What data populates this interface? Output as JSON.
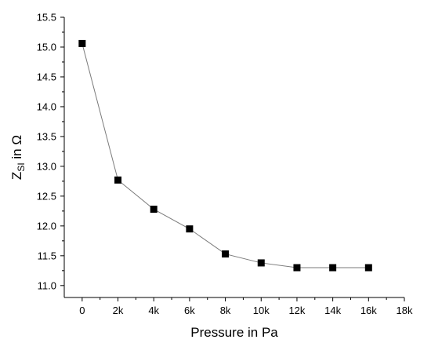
{
  "chart_data": {
    "type": "scatter",
    "xlabel": "Pressure in Pa",
    "ylabel_main": "Z",
    "ylabel_sub": "SI",
    "ylabel_rest": " in Ω",
    "xlim": [
      -1000,
      18000
    ],
    "ylim": [
      10.8,
      15.5
    ],
    "x_ticks": [
      {
        "value": 0,
        "label": "0"
      },
      {
        "value": 2000,
        "label": "2k"
      },
      {
        "value": 4000,
        "label": "4k"
      },
      {
        "value": 6000,
        "label": "6k"
      },
      {
        "value": 8000,
        "label": "8k"
      },
      {
        "value": 10000,
        "label": "10k"
      },
      {
        "value": 12000,
        "label": "12k"
      },
      {
        "value": 14000,
        "label": "14k"
      },
      {
        "value": 16000,
        "label": "16k"
      },
      {
        "value": 18000,
        "label": "18k"
      }
    ],
    "y_ticks": [
      {
        "value": 11.0,
        "label": "11.0"
      },
      {
        "value": 11.5,
        "label": "11.5"
      },
      {
        "value": 12.0,
        "label": "12.0"
      },
      {
        "value": 12.5,
        "label": "12.5"
      },
      {
        "value": 13.0,
        "label": "13.0"
      },
      {
        "value": 13.5,
        "label": "13.5"
      },
      {
        "value": 14.0,
        "label": "14.0"
      },
      {
        "value": 14.5,
        "label": "14.5"
      },
      {
        "value": 15.0,
        "label": "15.0"
      },
      {
        "value": 15.5,
        "label": "15.5"
      }
    ],
    "grid": false,
    "legend": "none",
    "line_color": "#7a7a7a",
    "marker_color": "#000000",
    "marker_shape": "square",
    "series": [
      {
        "x": [
          0,
          2000,
          4000,
          6000,
          8000,
          10000,
          12000,
          14000,
          16000
        ],
        "y": [
          15.06,
          12.77,
          12.28,
          11.95,
          11.53,
          11.38,
          11.3,
          11.3,
          11.3
        ]
      }
    ]
  }
}
